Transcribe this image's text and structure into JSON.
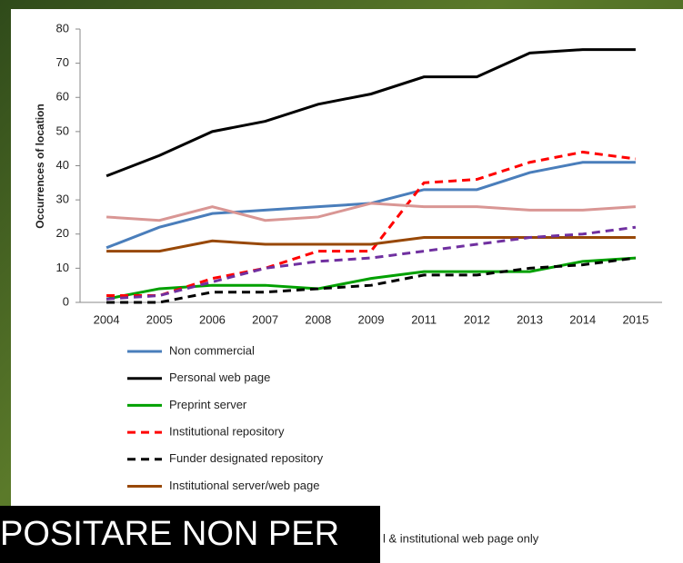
{
  "chart_data": {
    "type": "line",
    "y_label": "Occurrences of location",
    "categories": [
      "2004",
      "2005",
      "2006",
      "2007",
      "2008",
      "2009",
      "2011",
      "2012",
      "2013",
      "2014",
      "2015"
    ],
    "ylim": [
      0,
      80
    ],
    "yticks": [
      0,
      10,
      20,
      30,
      40,
      50,
      60,
      70,
      80
    ],
    "series": [
      {
        "name": "Non commercial",
        "color": "#4a7ebb",
        "dash": false,
        "values": [
          16,
          22,
          26,
          27,
          28,
          29,
          33,
          33,
          38,
          41,
          41
        ]
      },
      {
        "name": "Personal web page",
        "color": "#000000",
        "dash": false,
        "values": [
          37,
          43,
          50,
          53,
          58,
          61,
          66,
          66,
          73,
          74,
          74
        ]
      },
      {
        "name": "Preprint server",
        "color": "#00a000",
        "dash": false,
        "values": [
          1,
          4,
          5,
          5,
          4,
          7,
          9,
          9,
          9,
          12,
          13
        ]
      },
      {
        "name": "Institutional repository",
        "color": "#ff0000",
        "dash": true,
        "values": [
          2,
          2,
          7,
          10,
          15,
          15,
          35,
          36,
          41,
          44,
          42
        ]
      },
      {
        "name": "Funder designated repository",
        "color": "#000000",
        "dash": true,
        "values": [
          0,
          0,
          3,
          3,
          4,
          5,
          8,
          8,
          10,
          11,
          13
        ]
      },
      {
        "name": "Institutional server/web page",
        "color": "#984807",
        "dash": false,
        "values": [
          15,
          15,
          18,
          17,
          17,
          17,
          19,
          19,
          19,
          19,
          19
        ]
      },
      {
        "color": "#7030a0",
        "dash": true,
        "values": [
          1,
          2,
          6,
          10,
          12,
          13,
          15,
          17,
          19,
          20,
          22
        ]
      },
      {
        "name": "l & institutional web page only",
        "color": "#d99694",
        "dash": false,
        "values": [
          25,
          24,
          28,
          24,
          25,
          29,
          28,
          28,
          27,
          27,
          28
        ]
      }
    ]
  },
  "overlay_caption": "POSITARE NON PER"
}
